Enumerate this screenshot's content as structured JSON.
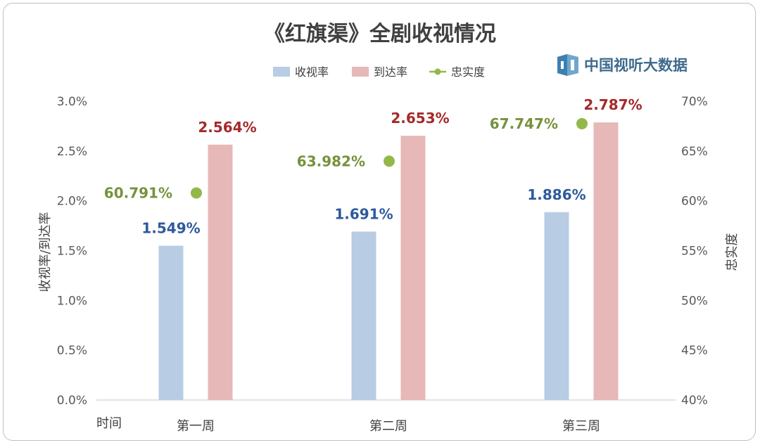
{
  "chart_data": {
    "type": "bar",
    "title": "《红旗渠》全剧收视情况",
    "categories": [
      "第一周",
      "第二周",
      "第三周"
    ],
    "x_axis_corner_label": "时间",
    "series": [
      {
        "name": "收视率",
        "type": "bar",
        "axis": "left",
        "color": "#b8cce4",
        "label_color": "#2e5a9c",
        "values": [
          1.549,
          1.691,
          1.886
        ],
        "labels": [
          "1.549%",
          "1.691%",
          "1.886%"
        ]
      },
      {
        "name": "到达率",
        "type": "bar",
        "axis": "left",
        "color": "#e6b8b7",
        "label_color": "#a52a2a",
        "values": [
          2.564,
          2.653,
          2.787
        ],
        "labels": [
          "2.564%",
          "2.653%",
          "2.787%"
        ]
      },
      {
        "name": "忠实度",
        "type": "scatter",
        "axis": "right",
        "color": "#92b84a",
        "label_color": "#76923c",
        "values": [
          60.791,
          63.982,
          67.747
        ],
        "labels": [
          "60.791%",
          "63.982%",
          "67.747%"
        ]
      }
    ],
    "ylabel": "收视率/到达率",
    "ylim": [
      0,
      3
    ],
    "yticks": [
      "0.0%",
      "0.5%",
      "1.0%",
      "1.5%",
      "2.0%",
      "2.5%",
      "3.0%"
    ],
    "y2label": "忠实度",
    "y2lim": [
      40,
      70
    ],
    "y2ticks": [
      "40%",
      "45%",
      "50%",
      "55%",
      "60%",
      "65%",
      "70%"
    ],
    "legend": "top-center",
    "grid": false
  },
  "logo": {
    "text": "中国视听大数据"
  }
}
